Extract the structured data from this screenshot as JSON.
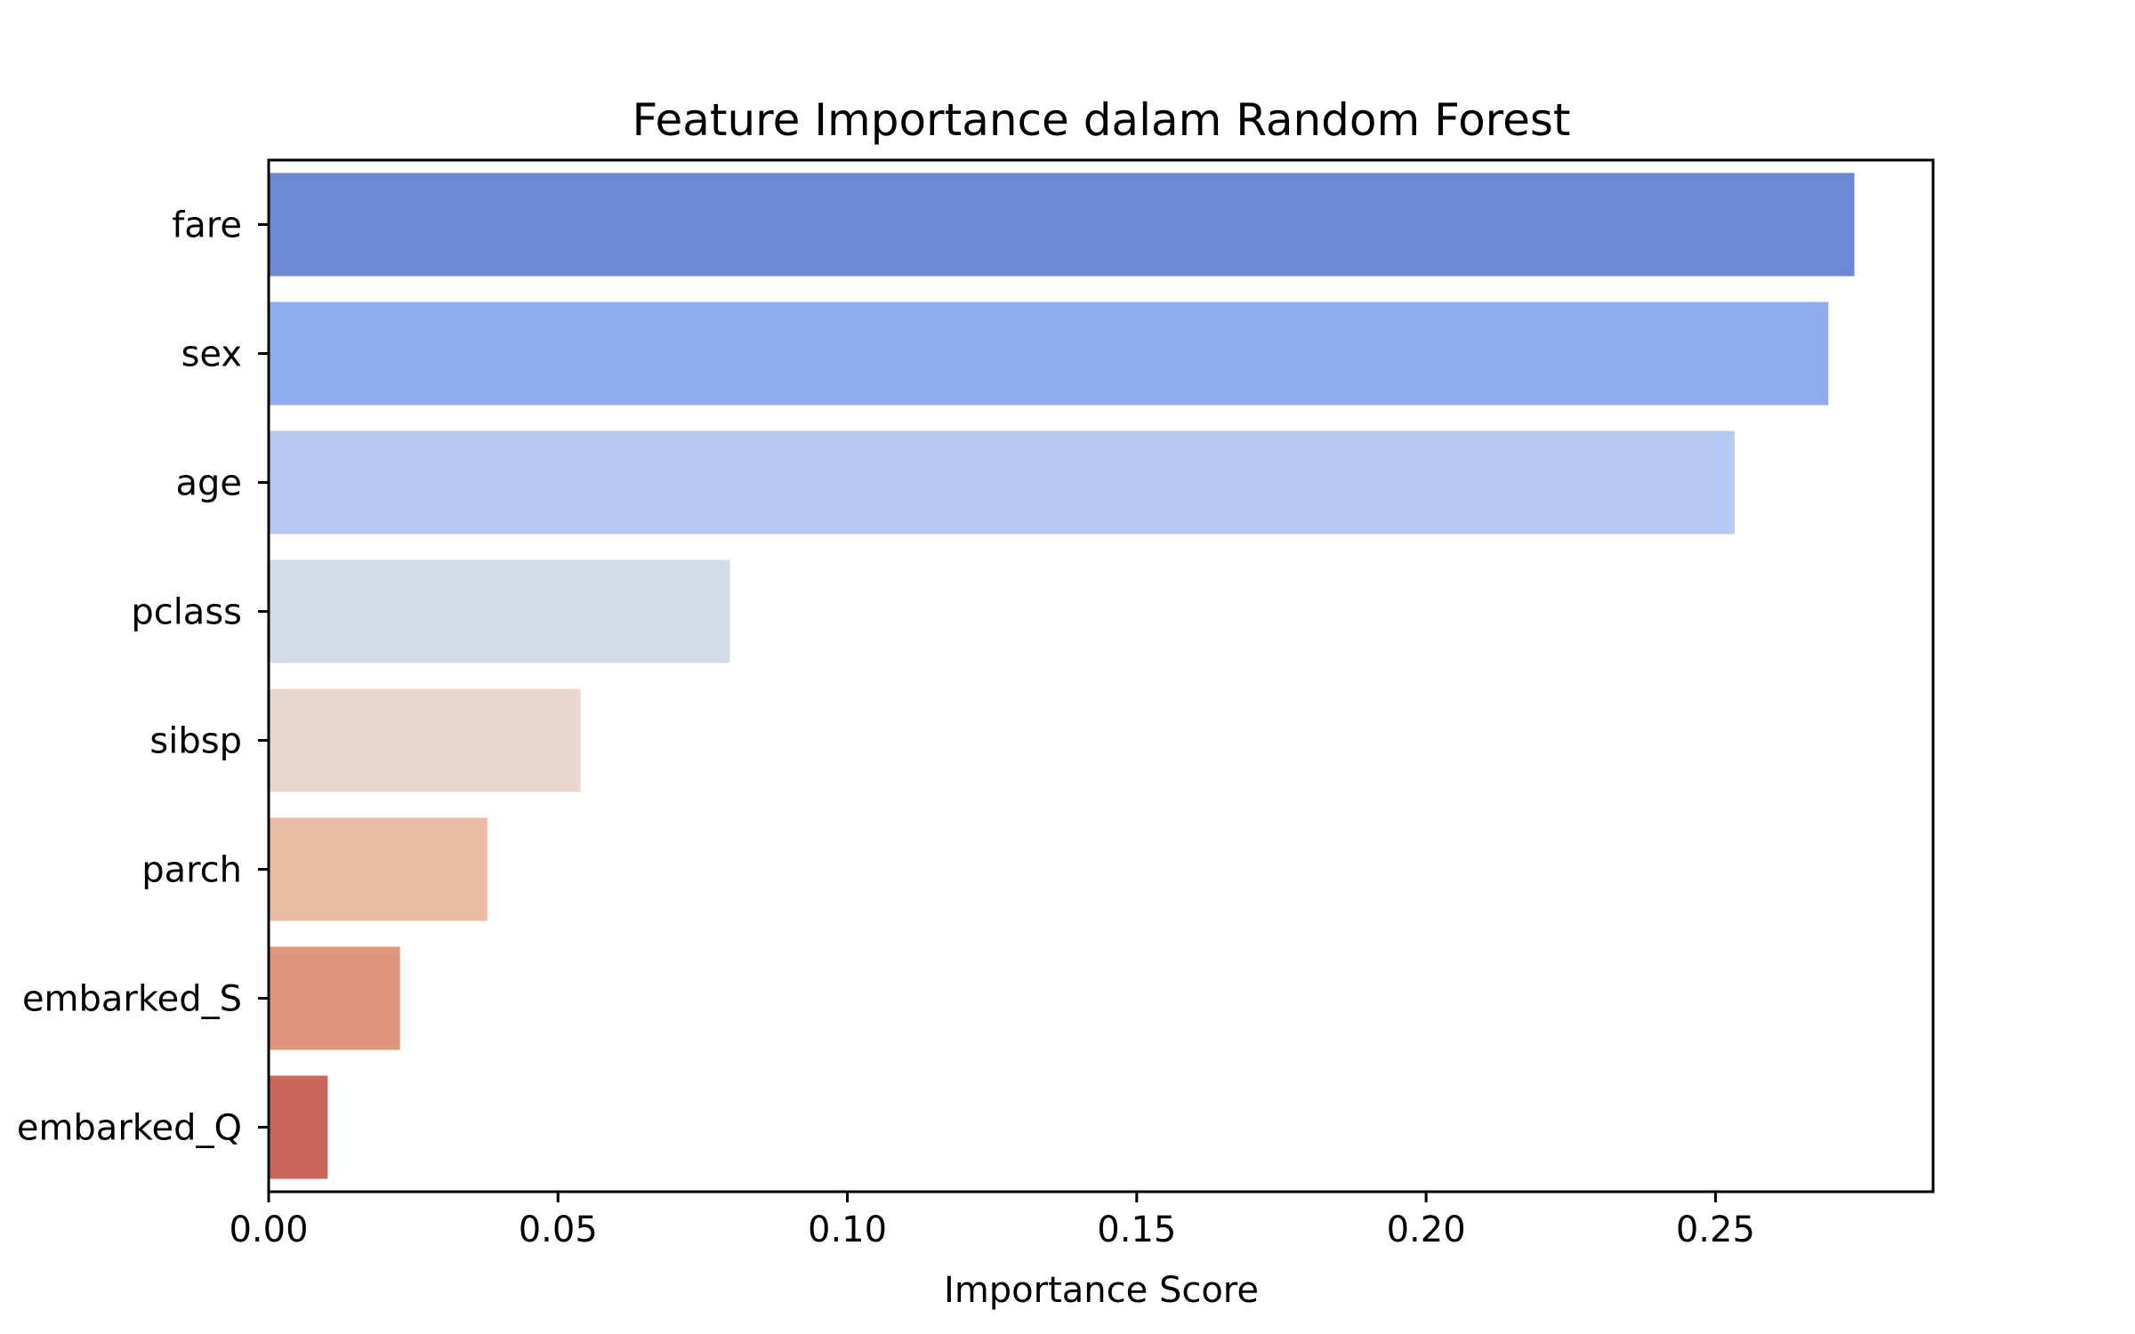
{
  "chart_data": {
    "type": "bar",
    "orientation": "horizontal",
    "title": "Feature Importance dalam Random Forest",
    "xlabel": "Importance Score",
    "ylabel": "",
    "categories": [
      "fare",
      "sex",
      "age",
      "pclass",
      "sibsp",
      "parch",
      "embarked_S",
      "embarked_Q"
    ],
    "values": [
      0.274,
      0.2695,
      0.2533,
      0.0797,
      0.0539,
      0.0378,
      0.0227,
      0.0102
    ],
    "colors": [
      "#6f88d6",
      "#90acec",
      "#b5c9f2",
      "#d3dbe8",
      "#e8d5cd",
      "#ecbca6",
      "#e0957d",
      "#c9665b"
    ],
    "xlim": [
      0,
      0.2876
    ],
    "xticks": [
      0.0,
      0.05,
      0.1,
      0.15,
      0.2,
      0.25
    ],
    "xtick_labels": [
      "0.00",
      "0.05",
      "0.10",
      "0.15",
      "0.20",
      "0.25"
    ],
    "grid": false
  }
}
